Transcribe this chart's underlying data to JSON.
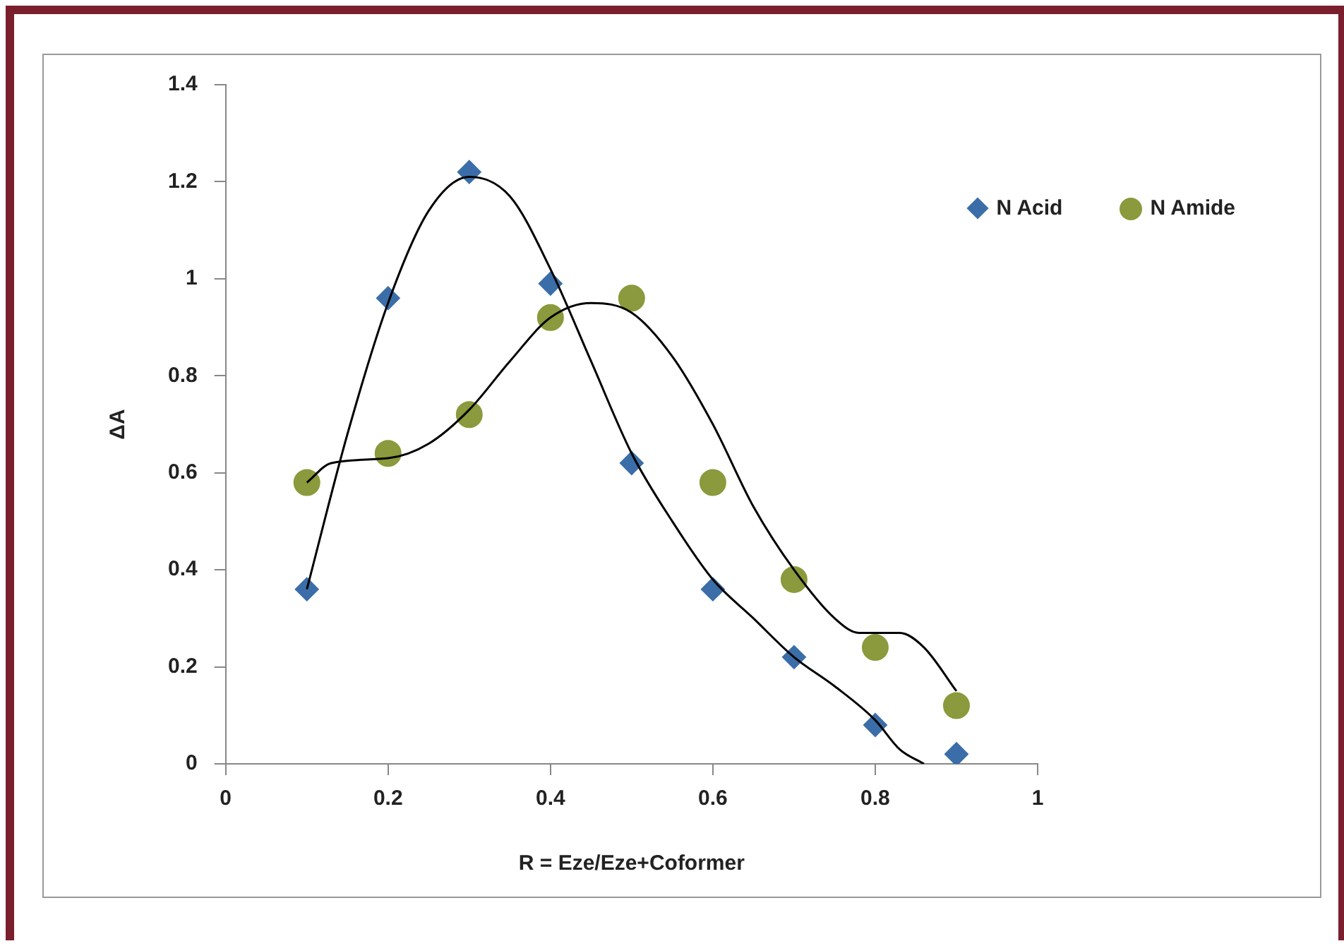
{
  "chart_data": {
    "type": "scatter",
    "xlabel": "R = Eze/Eze+Coformer",
    "ylabel": "ΔA",
    "xlim": [
      0,
      1
    ],
    "xticks": [
      0,
      0.2,
      0.4,
      0.6,
      0.8,
      1
    ],
    "ylim": [
      0,
      1.4
    ],
    "yticks": [
      0,
      0.2,
      0.4,
      0.6,
      0.8,
      1,
      1.2,
      1.4
    ],
    "grid": false,
    "legend": "top right",
    "series": [
      {
        "name": "N Acid",
        "color": "#3b6ea8",
        "marker": "diamond",
        "x": [
          0.1,
          0.2,
          0.3,
          0.4,
          0.5,
          0.6,
          0.7,
          0.8,
          0.9
        ],
        "values": [
          0.36,
          0.96,
          1.22,
          0.99,
          0.62,
          0.36,
          0.22,
          0.08,
          0.02
        ]
      },
      {
        "name": "N Amide",
        "color": "#8a9a3c",
        "marker": "circle",
        "x": [
          0.1,
          0.2,
          0.3,
          0.4,
          0.5,
          0.6,
          0.7,
          0.8,
          0.9
        ],
        "values": [
          0.58,
          0.64,
          0.72,
          0.92,
          0.96,
          0.58,
          0.38,
          0.24,
          0.12
        ]
      },
      {
        "type": "line",
        "color": "#000000",
        "marker": "none",
        "x": [
          0.1,
          0.15,
          0.2,
          0.25,
          0.3,
          0.35,
          0.4,
          0.45,
          0.5,
          0.55,
          0.6,
          0.65,
          0.7,
          0.75,
          0.8,
          0.83,
          0.86
        ],
        "values": [
          0.36,
          0.68,
          0.95,
          1.14,
          1.21,
          1.17,
          1.02,
          0.83,
          0.64,
          0.5,
          0.38,
          0.3,
          0.22,
          0.16,
          0.09,
          0.03,
          0
        ]
      },
      {
        "type": "line",
        "color": "#000000",
        "marker": "none",
        "x": [
          0.1,
          0.13,
          0.2,
          0.25,
          0.3,
          0.35,
          0.4,
          0.45,
          0.5,
          0.55,
          0.6,
          0.65,
          0.7,
          0.75,
          0.78,
          0.83,
          0.86,
          0.9
        ],
        "values": [
          0.58,
          0.62,
          0.63,
          0.66,
          0.73,
          0.83,
          0.92,
          0.95,
          0.93,
          0.84,
          0.7,
          0.53,
          0.4,
          0.3,
          0.27,
          0.27,
          0.24,
          0.15
        ]
      }
    ]
  }
}
